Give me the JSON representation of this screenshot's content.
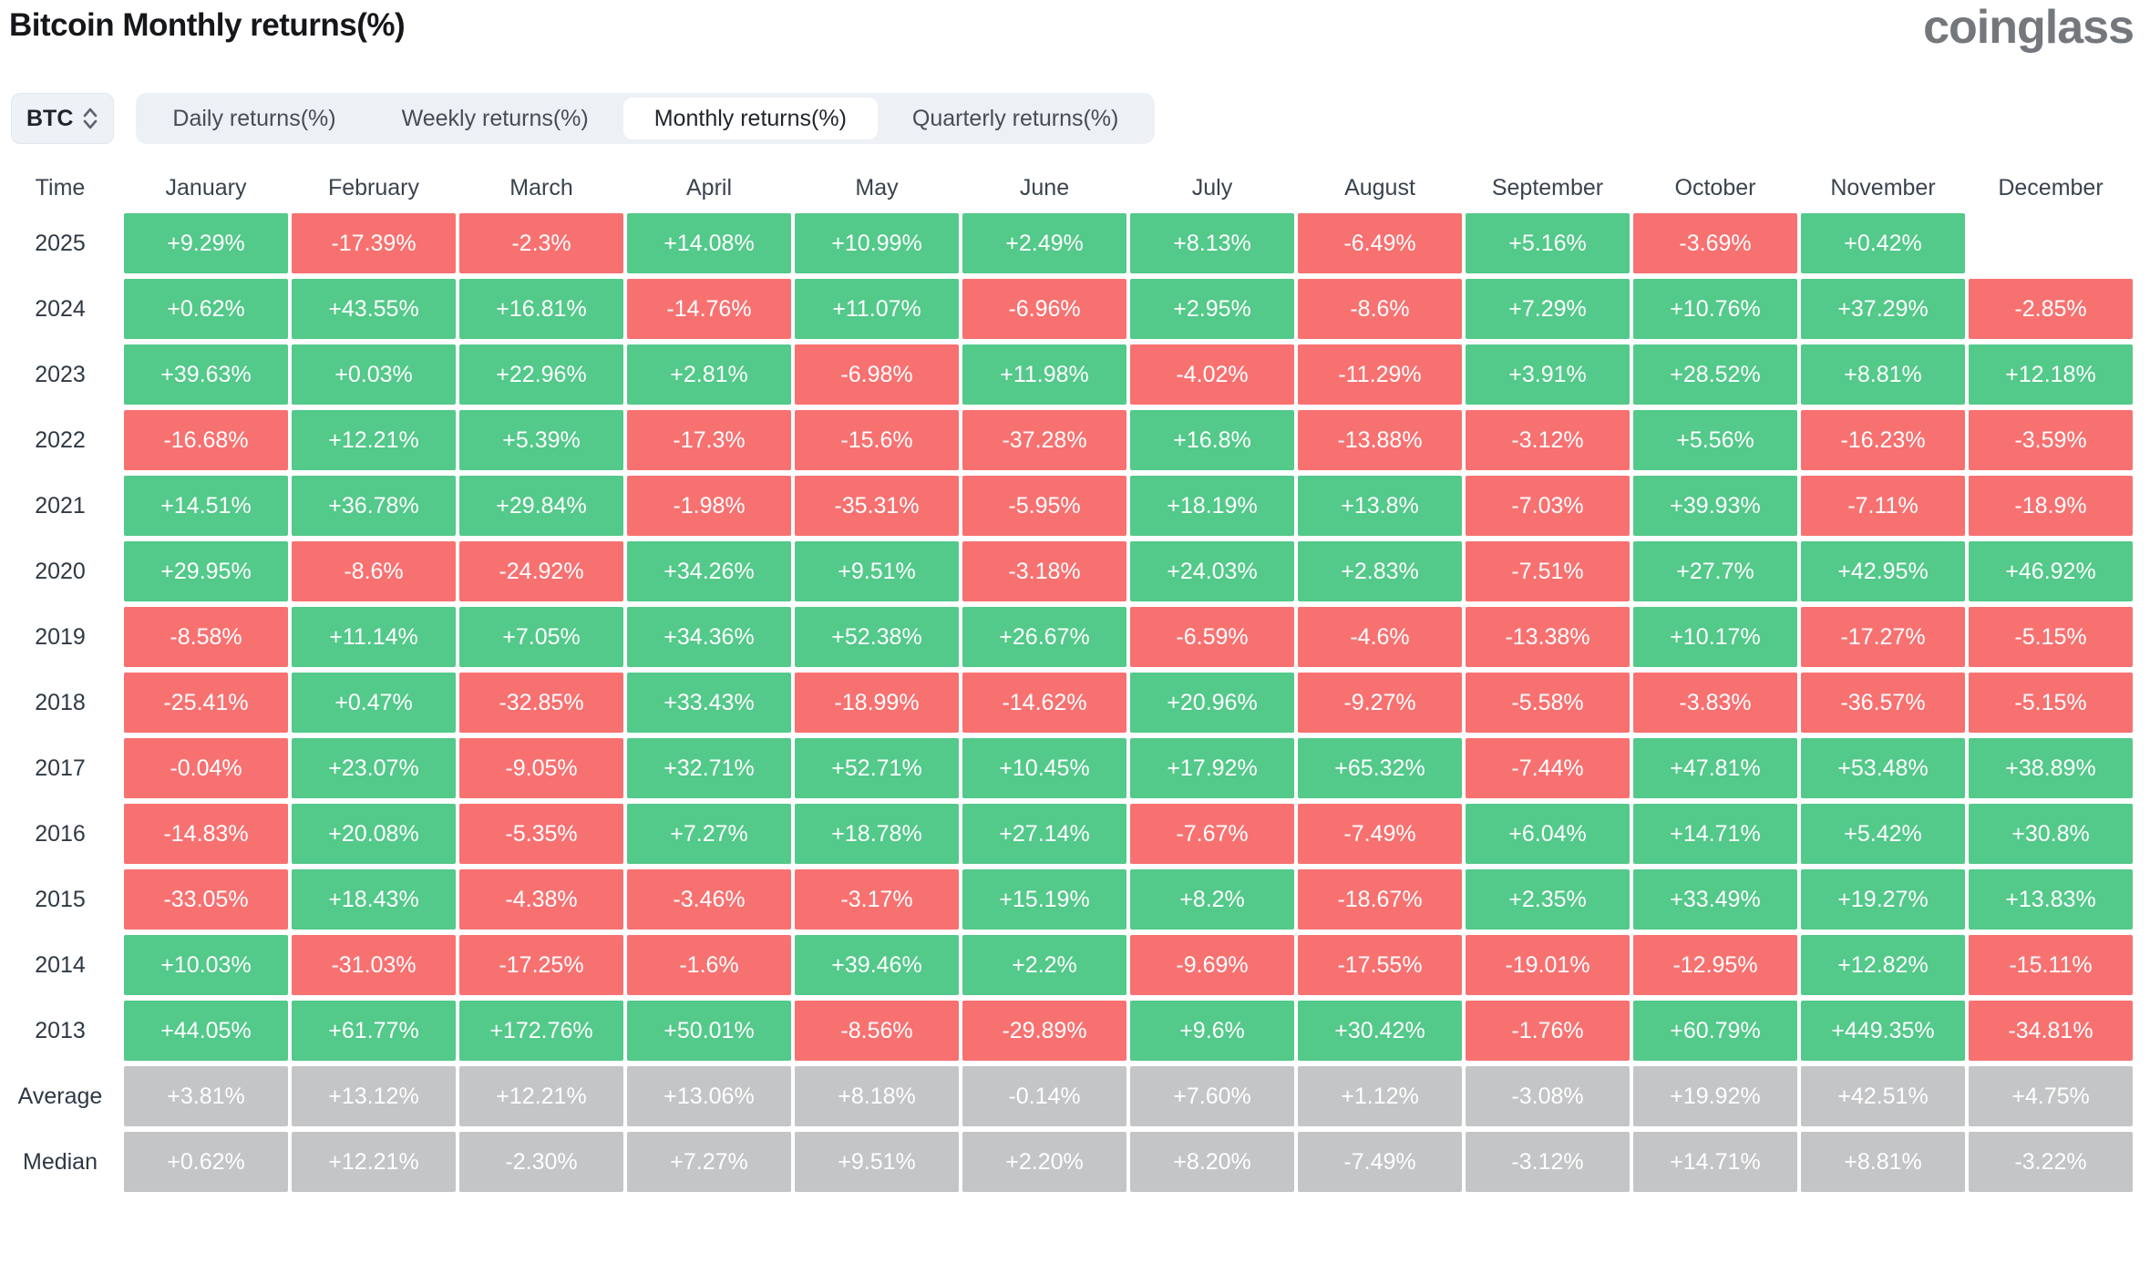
{
  "page": {
    "title": "Bitcoin Monthly returns(%)",
    "logo": "coinglass"
  },
  "controls": {
    "symbol": "BTC",
    "tabs": [
      {
        "label": "Daily returns(%)",
        "active": false
      },
      {
        "label": "Weekly returns(%)",
        "active": false
      },
      {
        "label": "Monthly returns(%)",
        "active": true
      },
      {
        "label": "Quarterly returns(%)",
        "active": false
      }
    ]
  },
  "chart_data": {
    "type": "heatmap",
    "title": "Bitcoin Monthly returns(%)",
    "columns": [
      "Time",
      "January",
      "February",
      "March",
      "April",
      "May",
      "June",
      "July",
      "August",
      "September",
      "October",
      "November",
      "December"
    ],
    "colors": {
      "positive": "#53C98A",
      "negative": "#F87171",
      "summary": "#C4C5C7",
      "value_text": "#FFFFFF"
    },
    "rows": [
      {
        "label": "2025",
        "type": "year",
        "values": [
          "+9.29%",
          "-17.39%",
          "-2.3%",
          "+14.08%",
          "+10.99%",
          "+2.49%",
          "+8.13%",
          "-6.49%",
          "+5.16%",
          "-3.69%",
          "+0.42%",
          null
        ]
      },
      {
        "label": "2024",
        "type": "year",
        "values": [
          "+0.62%",
          "+43.55%",
          "+16.81%",
          "-14.76%",
          "+11.07%",
          "-6.96%",
          "+2.95%",
          "-8.6%",
          "+7.29%",
          "+10.76%",
          "+37.29%",
          "-2.85%"
        ]
      },
      {
        "label": "2023",
        "type": "year",
        "values": [
          "+39.63%",
          "+0.03%",
          "+22.96%",
          "+2.81%",
          "-6.98%",
          "+11.98%",
          "-4.02%",
          "-11.29%",
          "+3.91%",
          "+28.52%",
          "+8.81%",
          "+12.18%"
        ]
      },
      {
        "label": "2022",
        "type": "year",
        "values": [
          "-16.68%",
          "+12.21%",
          "+5.39%",
          "-17.3%",
          "-15.6%",
          "-37.28%",
          "+16.8%",
          "-13.88%",
          "-3.12%",
          "+5.56%",
          "-16.23%",
          "-3.59%"
        ]
      },
      {
        "label": "2021",
        "type": "year",
        "values": [
          "+14.51%",
          "+36.78%",
          "+29.84%",
          "-1.98%",
          "-35.31%",
          "-5.95%",
          "+18.19%",
          "+13.8%",
          "-7.03%",
          "+39.93%",
          "-7.11%",
          "-18.9%"
        ]
      },
      {
        "label": "2020",
        "type": "year",
        "values": [
          "+29.95%",
          "-8.6%",
          "-24.92%",
          "+34.26%",
          "+9.51%",
          "-3.18%",
          "+24.03%",
          "+2.83%",
          "-7.51%",
          "+27.7%",
          "+42.95%",
          "+46.92%"
        ]
      },
      {
        "label": "2019",
        "type": "year",
        "values": [
          "-8.58%",
          "+11.14%",
          "+7.05%",
          "+34.36%",
          "+52.38%",
          "+26.67%",
          "-6.59%",
          "-4.6%",
          "-13.38%",
          "+10.17%",
          "-17.27%",
          "-5.15%"
        ]
      },
      {
        "label": "2018",
        "type": "year",
        "values": [
          "-25.41%",
          "+0.47%",
          "-32.85%",
          "+33.43%",
          "-18.99%",
          "-14.62%",
          "+20.96%",
          "-9.27%",
          "-5.58%",
          "-3.83%",
          "-36.57%",
          "-5.15%"
        ]
      },
      {
        "label": "2017",
        "type": "year",
        "values": [
          "-0.04%",
          "+23.07%",
          "-9.05%",
          "+32.71%",
          "+52.71%",
          "+10.45%",
          "+17.92%",
          "+65.32%",
          "-7.44%",
          "+47.81%",
          "+53.48%",
          "+38.89%"
        ]
      },
      {
        "label": "2016",
        "type": "year",
        "values": [
          "-14.83%",
          "+20.08%",
          "-5.35%",
          "+7.27%",
          "+18.78%",
          "+27.14%",
          "-7.67%",
          "-7.49%",
          "+6.04%",
          "+14.71%",
          "+5.42%",
          "+30.8%"
        ]
      },
      {
        "label": "2015",
        "type": "year",
        "values": [
          "-33.05%",
          "+18.43%",
          "-4.38%",
          "-3.46%",
          "-3.17%",
          "+15.19%",
          "+8.2%",
          "-18.67%",
          "+2.35%",
          "+33.49%",
          "+19.27%",
          "+13.83%"
        ]
      },
      {
        "label": "2014",
        "type": "year",
        "values": [
          "+10.03%",
          "-31.03%",
          "-17.25%",
          "-1.6%",
          "+39.46%",
          "+2.2%",
          "-9.69%",
          "-17.55%",
          "-19.01%",
          "-12.95%",
          "+12.82%",
          "-15.11%"
        ]
      },
      {
        "label": "2013",
        "type": "year",
        "values": [
          "+44.05%",
          "+61.77%",
          "+172.76%",
          "+50.01%",
          "-8.56%",
          "-29.89%",
          "+9.6%",
          "+30.42%",
          "-1.76%",
          "+60.79%",
          "+449.35%",
          "-34.81%"
        ]
      },
      {
        "label": "Average",
        "type": "summary",
        "values": [
          "+3.81%",
          "+13.12%",
          "+12.21%",
          "+13.06%",
          "+8.18%",
          "-0.14%",
          "+7.60%",
          "+1.12%",
          "-3.08%",
          "+19.92%",
          "+42.51%",
          "+4.75%"
        ]
      },
      {
        "label": "Median",
        "type": "summary",
        "values": [
          "+0.62%",
          "+12.21%",
          "-2.30%",
          "+7.27%",
          "+9.51%",
          "+2.20%",
          "+8.20%",
          "-7.49%",
          "-3.12%",
          "+14.71%",
          "+8.81%",
          "-3.22%"
        ]
      }
    ]
  }
}
